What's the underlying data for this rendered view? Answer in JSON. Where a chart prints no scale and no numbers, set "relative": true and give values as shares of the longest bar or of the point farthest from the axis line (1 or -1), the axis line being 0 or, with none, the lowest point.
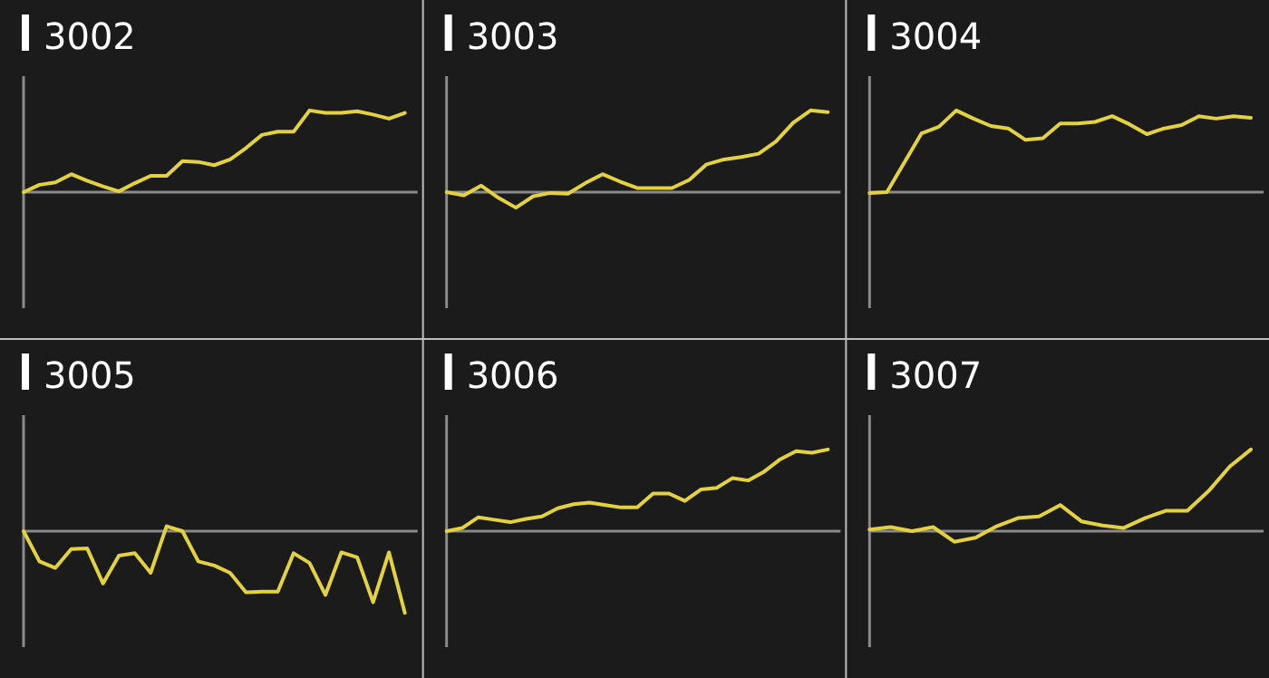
{
  "chart_data": [
    {
      "type": "line",
      "title": "3002",
      "relative": true,
      "color": "#e3d23f",
      "categories": [
        null,
        null,
        null,
        null,
        null,
        null,
        null,
        null,
        null,
        null,
        null,
        null,
        null,
        null,
        null,
        null,
        null,
        null,
        null,
        null,
        null,
        null,
        null,
        null,
        null
      ],
      "values": [
        0,
        0.09,
        0.12,
        0.22,
        0.14,
        0.07,
        0.01,
        0.11,
        0.2,
        0.2,
        0.38,
        0.37,
        0.33,
        0.4,
        0.54,
        0.7,
        0.74,
        0.74,
        1,
        0.97,
        0.97,
        0.99,
        0.95,
        0.9,
        0.97
      ]
    },
    {
      "type": "line",
      "title": "3003",
      "relative": true,
      "color": "#e3d23f",
      "categories": [
        null,
        null,
        null,
        null,
        null,
        null,
        null,
        null,
        null,
        null,
        null,
        null,
        null,
        null,
        null,
        null,
        null,
        null,
        null,
        null,
        null,
        null,
        null
      ],
      "values": [
        0,
        -0.04,
        0.08,
        -0.07,
        -0.19,
        -0.05,
        -0.01,
        -0.02,
        0.11,
        0.22,
        0.13,
        0.05,
        0.05,
        0.05,
        0.15,
        0.34,
        0.4,
        0.43,
        0.47,
        0.62,
        0.85,
        1,
        0.98
      ]
    },
    {
      "type": "line",
      "title": "3004",
      "relative": true,
      "color": "#e3d23f",
      "categories": [
        null,
        null,
        null,
        null,
        null,
        null,
        null,
        null,
        null,
        null,
        null,
        null,
        null,
        null,
        null,
        null,
        null,
        null,
        null,
        null,
        null,
        null,
        null
      ],
      "values": [
        -0.01,
        0,
        0.36,
        0.72,
        0.8,
        1,
        0.9,
        0.81,
        0.78,
        0.64,
        0.66,
        0.84,
        0.84,
        0.86,
        0.93,
        0.83,
        0.71,
        0.78,
        0.82,
        0.93,
        0.9,
        0.93,
        0.91
      ]
    },
    {
      "type": "line",
      "title": "3005",
      "relative": true,
      "color": "#e3d23f",
      "categories": [
        null,
        null,
        null,
        null,
        null,
        null,
        null,
        null,
        null,
        null,
        null,
        null,
        null,
        null,
        null,
        null,
        null,
        null,
        null,
        null,
        null,
        null,
        null,
        null,
        null
      ],
      "values": [
        0,
        -0.37,
        -0.45,
        -0.22,
        -0.21,
        -0.64,
        -0.3,
        -0.27,
        -0.51,
        0.06,
        0,
        -0.37,
        -0.42,
        -0.51,
        -0.75,
        -0.74,
        -0.74,
        -0.27,
        -0.39,
        -0.78,
        -0.26,
        -0.32,
        -0.87,
        -0.26,
        -1
      ]
    },
    {
      "type": "line",
      "title": "3006",
      "relative": true,
      "color": "#e3d23f",
      "categories": [
        null,
        null,
        null,
        null,
        null,
        null,
        null,
        null,
        null,
        null,
        null,
        null,
        null,
        null,
        null,
        null,
        null,
        null,
        null,
        null,
        null,
        null,
        null,
        null,
        null
      ],
      "values": [
        0,
        0.04,
        0.17,
        0.14,
        0.11,
        0.15,
        0.18,
        0.28,
        0.33,
        0.35,
        0.32,
        0.29,
        0.29,
        0.46,
        0.46,
        0.37,
        0.51,
        0.53,
        0.65,
        0.62,
        0.73,
        0.88,
        0.98,
        0.96,
        1
      ]
    },
    {
      "type": "line",
      "title": "3007",
      "relative": true,
      "color": "#e3d23f",
      "categories": [
        null,
        null,
        null,
        null,
        null,
        null,
        null,
        null,
        null,
        null,
        null,
        null,
        null,
        null,
        null,
        null,
        null,
        null,
        null
      ],
      "values": [
        0.02,
        0.05,
        0,
        0.05,
        -0.13,
        -0.08,
        0.06,
        0.16,
        0.18,
        0.32,
        0.12,
        0.07,
        0.04,
        0.16,
        0.25,
        0.25,
        0.49,
        0.79,
        1
      ]
    }
  ]
}
